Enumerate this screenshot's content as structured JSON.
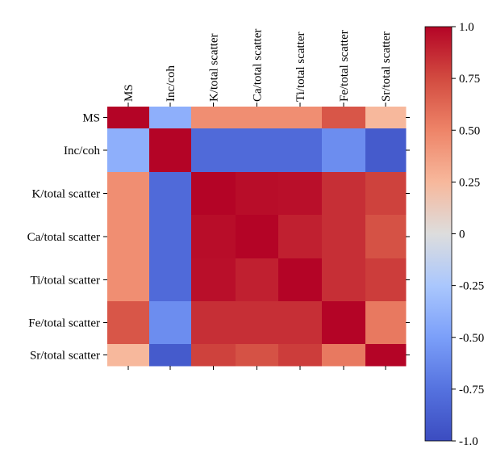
{
  "chart_data": {
    "type": "heatmap",
    "title": "",
    "xlabel": "",
    "ylabel": "",
    "x_categories": [
      "MS",
      "Inc/coh",
      "K/total scatter",
      "Ca/total scatter",
      "Ti/total scatter",
      "Fe/total scatter",
      "Sr/total scatter"
    ],
    "y_categories": [
      "MS",
      "Inc/coh",
      "K/total scatter",
      "Ca/total scatter",
      "Ti/total scatter",
      "Fe/total scatter",
      "Sr/total scatter"
    ],
    "values": [
      [
        1.0,
        -0.4,
        0.45,
        0.45,
        0.45,
        0.7,
        0.25
      ],
      [
        -0.4,
        1.0,
        -0.8,
        -0.8,
        -0.8,
        -0.6,
        -0.9
      ],
      [
        0.45,
        -0.8,
        1.0,
        0.97,
        0.96,
        0.85,
        0.78
      ],
      [
        0.45,
        -0.8,
        0.97,
        1.0,
        0.9,
        0.85,
        0.72
      ],
      [
        0.45,
        -0.8,
        0.96,
        0.9,
        1.0,
        0.85,
        0.8
      ],
      [
        0.7,
        -0.6,
        0.85,
        0.85,
        0.85,
        1.0,
        0.55
      ],
      [
        0.25,
        -0.9,
        0.78,
        0.72,
        0.8,
        0.55,
        1.0
      ]
    ],
    "colorbar": {
      "range": [
        -1.0,
        1.0
      ],
      "ticks": [
        "1.0",
        "0.75",
        "0.50",
        "0.25",
        "0",
        "-0.25",
        "-0.50",
        "-0.75",
        "-1.0"
      ],
      "colormap": "coolwarm",
      "color_low": "#3b4cc0",
      "color_mid": "#dddddd",
      "color_high": "#b40426"
    },
    "grid": false,
    "legend": "colorbar-right"
  }
}
